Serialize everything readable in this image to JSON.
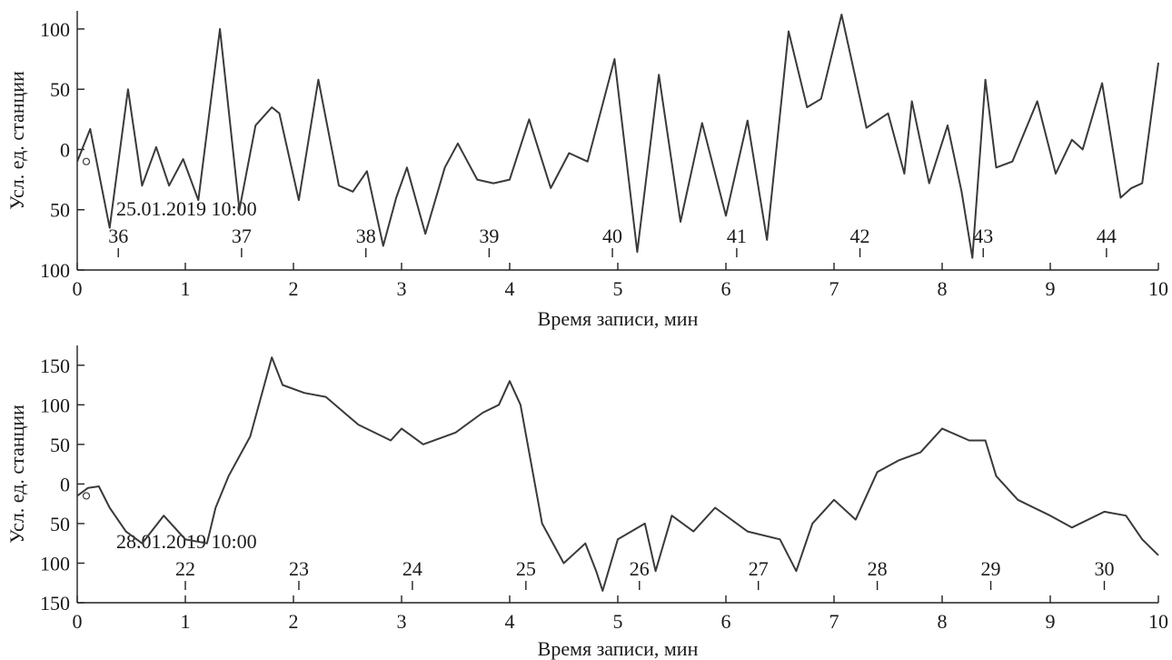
{
  "chart_data": [
    {
      "type": "line",
      "xlabel": "Время записи, мин",
      "ylabel": "Усл. ед. станции",
      "xlim": [
        0,
        10
      ],
      "ylim": [
        -100,
        115
      ],
      "x_ticks": [
        0,
        1,
        2,
        3,
        4,
        5,
        6,
        7,
        8,
        9,
        10
      ],
      "y_ticks": [
        -100,
        -50,
        0,
        50,
        100
      ],
      "y_tick_labels": [
        "100",
        "50",
        "0",
        "50",
        "100"
      ],
      "grid": false,
      "annotation": "25.01.2019 10:00",
      "minute_markers": [
        {
          "label": "36",
          "x": 0.38
        },
        {
          "label": "37",
          "x": 1.52
        },
        {
          "label": "38",
          "x": 2.67
        },
        {
          "label": "39",
          "x": 3.81
        },
        {
          "label": "40",
          "x": 4.95
        },
        {
          "label": "41",
          "x": 6.1
        },
        {
          "label": "42",
          "x": 7.24
        },
        {
          "label": "43",
          "x": 8.38
        },
        {
          "label": "44",
          "x": 9.52
        }
      ],
      "series": [
        {
          "x": [
            0,
            0.12,
            0.3,
            0.47,
            0.6,
            0.73,
            0.85,
            0.98,
            1.12,
            1.32,
            1.5,
            1.65,
            1.8,
            1.87,
            2.05,
            2.23,
            2.42,
            2.55,
            2.68,
            2.83,
            2.95,
            3.05,
            3.22,
            3.4,
            3.52,
            3.7,
            3.85,
            4.0,
            4.18,
            4.38,
            4.55,
            4.72,
            4.97,
            5.18,
            5.38,
            5.58,
            5.78,
            6.0,
            6.2,
            6.38,
            6.58,
            6.75,
            6.88,
            7.07,
            7.3,
            7.5,
            7.65,
            7.72,
            7.88,
            8.05,
            8.18,
            8.28,
            8.4,
            8.5,
            8.65,
            8.88,
            9.05,
            9.2,
            9.3,
            9.48,
            9.65,
            9.75,
            9.85,
            10.0
          ],
          "y": [
            -10,
            17,
            -65,
            50,
            -30,
            2,
            -30,
            -8,
            -42,
            100,
            -50,
            20,
            35,
            30,
            -42,
            58,
            -30,
            -35,
            -18,
            -80,
            -40,
            -15,
            -70,
            -15,
            5,
            -25,
            -28,
            -25,
            25,
            -32,
            -3,
            -10,
            75,
            -85,
            62,
            -60,
            22,
            -55,
            24,
            -75,
            98,
            35,
            42,
            112,
            18,
            30,
            -20,
            40,
            -28,
            20,
            -35,
            -90,
            58,
            -15,
            -10,
            40,
            -20,
            8,
            0,
            55,
            -40,
            -32,
            -28,
            72
          ]
        }
      ]
    },
    {
      "type": "line",
      "xlabel": "Время записи, мин",
      "ylabel": "Усл. ед. станции",
      "xlim": [
        0,
        10
      ],
      "ylim": [
        -150,
        175
      ],
      "x_ticks": [
        0,
        1,
        2,
        3,
        4,
        5,
        6,
        7,
        8,
        9,
        10
      ],
      "y_ticks": [
        -150,
        -100,
        -50,
        0,
        50,
        100,
        150
      ],
      "y_tick_labels": [
        "150",
        "100",
        "50",
        "0",
        "50",
        "100",
        "150"
      ],
      "grid": false,
      "annotation": "28.01.2019 10:00",
      "minute_markers": [
        {
          "label": "22",
          "x": 1.0
        },
        {
          "label": "23",
          "x": 2.05
        },
        {
          "label": "24",
          "x": 3.1
        },
        {
          "label": "25",
          "x": 4.15
        },
        {
          "label": "26",
          "x": 5.2
        },
        {
          "label": "27",
          "x": 6.3
        },
        {
          "label": "28",
          "x": 7.4
        },
        {
          "label": "29",
          "x": 8.45
        },
        {
          "label": "30",
          "x": 9.5
        }
      ],
      "series": [
        {
          "x": [
            0,
            0.1,
            0.2,
            0.3,
            0.45,
            0.6,
            0.8,
            1.0,
            1.2,
            1.28,
            1.4,
            1.6,
            1.8,
            1.9,
            2.1,
            2.3,
            2.6,
            2.9,
            3.0,
            3.2,
            3.5,
            3.75,
            3.9,
            4.0,
            4.1,
            4.3,
            4.5,
            4.7,
            4.8,
            4.86,
            5.0,
            5.25,
            5.35,
            5.5,
            5.7,
            5.9,
            6.2,
            6.5,
            6.65,
            6.8,
            7.0,
            7.2,
            7.4,
            7.6,
            7.8,
            8.0,
            8.25,
            8.4,
            8.5,
            8.7,
            9.0,
            9.2,
            9.5,
            9.7,
            9.85,
            10.0
          ],
          "y": [
            -15,
            -5,
            -3,
            -30,
            -60,
            -75,
            -40,
            -70,
            -75,
            -30,
            10,
            60,
            160,
            125,
            115,
            110,
            75,
            55,
            70,
            50,
            65,
            90,
            100,
            130,
            100,
            -50,
            -100,
            -75,
            -110,
            -135,
            -70,
            -50,
            -110,
            -40,
            -60,
            -30,
            -60,
            -70,
            -110,
            -50,
            -20,
            -45,
            15,
            30,
            40,
            70,
            55,
            55,
            10,
            -20,
            -40,
            -55,
            -35,
            -40,
            -70,
            -90
          ]
        }
      ]
    }
  ]
}
